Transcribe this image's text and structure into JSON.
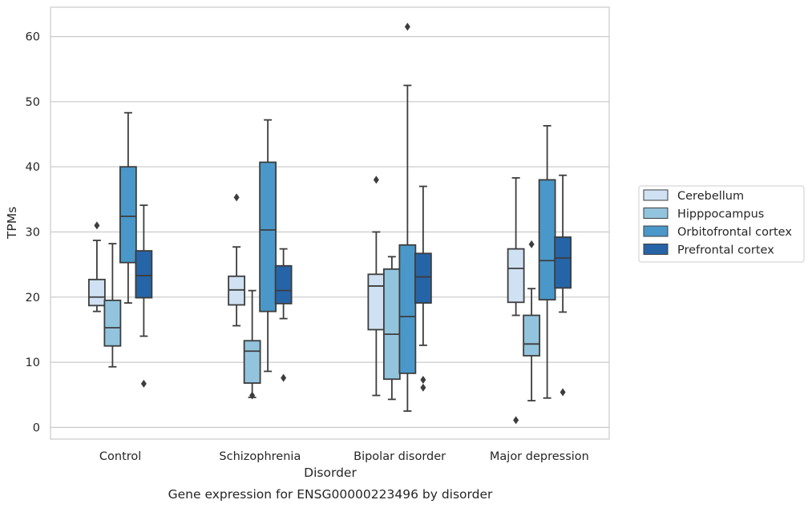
{
  "caption": "Gene expression for ENSG00000223496 by disorder",
  "chart_data": {
    "type": "box",
    "xlabel": "Disorder",
    "ylabel": "TPMs",
    "ylim": [
      -1.8,
      64.5
    ],
    "yticks": [
      0,
      10,
      20,
      30,
      40,
      50,
      60
    ],
    "grid": true,
    "legend_position": "right",
    "categories": [
      "Control",
      "Schizophrenia",
      "Bipolar disorder",
      "Major depression"
    ],
    "series": [
      {
        "name": "Cerebellum",
        "color": "#cfe1f2",
        "boxes": [
          {
            "whisker_low": 17.8,
            "q1": 18.7,
            "median": 20.0,
            "q3": 22.7,
            "whisker_high": 28.7,
            "outliers": [
              31.0
            ]
          },
          {
            "whisker_low": 15.6,
            "q1": 18.8,
            "median": 21.1,
            "q3": 23.2,
            "whisker_high": 27.7,
            "outliers": [
              35.3
            ]
          },
          {
            "whisker_low": 4.9,
            "q1": 15.0,
            "median": 21.7,
            "q3": 23.5,
            "whisker_high": 30.0,
            "outliers": [
              38.0
            ]
          },
          {
            "whisker_low": 17.2,
            "q1": 19.2,
            "median": 24.4,
            "q3": 27.4,
            "whisker_high": 38.3,
            "outliers": [
              1.1
            ]
          }
        ]
      },
      {
        "name": "Hipppocampus",
        "color": "#93c4de",
        "boxes": [
          {
            "whisker_low": 9.3,
            "q1": 12.5,
            "median": 15.3,
            "q3": 19.5,
            "whisker_high": 28.2,
            "outliers": []
          },
          {
            "whisker_low": 4.6,
            "q1": 6.8,
            "median": 11.7,
            "q3": 13.3,
            "whisker_high": 21.0,
            "outliers": [
              4.9
            ]
          },
          {
            "whisker_low": 4.3,
            "q1": 7.4,
            "median": 14.3,
            "q3": 24.3,
            "whisker_high": 26.2,
            "outliers": []
          },
          {
            "whisker_low": 4.1,
            "q1": 11.0,
            "median": 12.8,
            "q3": 17.2,
            "whisker_high": 21.3,
            "outliers": [
              28.1
            ]
          }
        ]
      },
      {
        "name": "Orbitofrontal cortex",
        "color": "#4a98c9",
        "boxes": [
          {
            "whisker_low": 19.1,
            "q1": 25.3,
            "median": 32.4,
            "q3": 40.0,
            "whisker_high": 48.3,
            "outliers": []
          },
          {
            "whisker_low": 8.6,
            "q1": 17.8,
            "median": 30.3,
            "q3": 40.7,
            "whisker_high": 47.2,
            "outliers": []
          },
          {
            "whisker_low": 2.5,
            "q1": 8.3,
            "median": 17.0,
            "q3": 28.0,
            "whisker_high": 52.5,
            "outliers": [
              61.5
            ]
          },
          {
            "whisker_low": 4.5,
            "q1": 19.6,
            "median": 25.6,
            "q3": 38.0,
            "whisker_high": 46.3,
            "outliers": []
          }
        ]
      },
      {
        "name": "Prefrontal cortex",
        "color": "#2664a8",
        "boxes": [
          {
            "whisker_low": 14.0,
            "q1": 19.9,
            "median": 23.3,
            "q3": 27.1,
            "whisker_high": 34.1,
            "outliers": [
              6.7
            ]
          },
          {
            "whisker_low": 16.7,
            "q1": 19.0,
            "median": 21.0,
            "q3": 24.8,
            "whisker_high": 27.4,
            "outliers": [
              7.6
            ]
          },
          {
            "whisker_low": 12.6,
            "q1": 19.1,
            "median": 23.1,
            "q3": 26.7,
            "whisker_high": 37.0,
            "outliers": [
              7.3,
              6.1
            ]
          },
          {
            "whisker_low": 17.7,
            "q1": 21.4,
            "median": 26.0,
            "q3": 29.2,
            "whisker_high": 38.7,
            "outliers": [
              5.4
            ]
          }
        ]
      }
    ]
  }
}
